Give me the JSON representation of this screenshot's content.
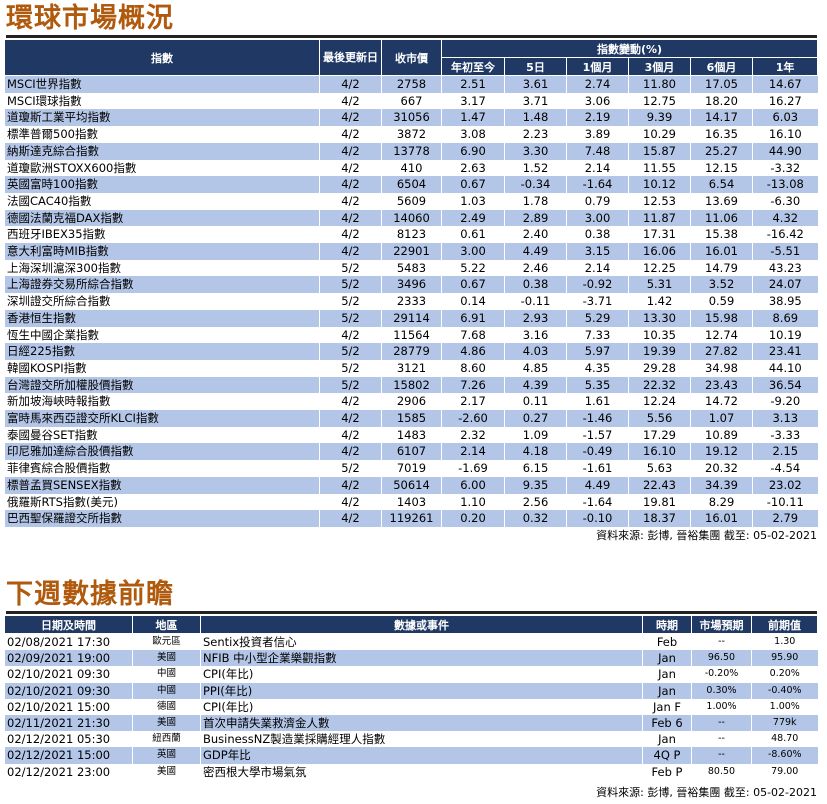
{
  "market": {
    "title": "環球市場概況",
    "headers": {
      "index": "指數",
      "last_update": "最後更新日",
      "close": "收市價",
      "change_group": "指數變動(%)",
      "ytd": "年初至今",
      "d5": "5日",
      "m1": "1個月",
      "m3": "3個月",
      "m6": "6個月",
      "y1": "1年"
    },
    "rows": [
      {
        "name": "MSCI世界指數",
        "date": "4/2",
        "close": "2758",
        "ytd": "2.51",
        "d5": "3.61",
        "m1": "2.74",
        "m3": "11.80",
        "m6": "17.05",
        "y1": "14.67"
      },
      {
        "name": "MSCI環球指數",
        "date": "4/2",
        "close": "667",
        "ytd": "3.17",
        "d5": "3.71",
        "m1": "3.06",
        "m3": "12.75",
        "m6": "18.20",
        "y1": "16.27"
      },
      {
        "name": "道瓊斯工業平均指數",
        "date": "4/2",
        "close": "31056",
        "ytd": "1.47",
        "d5": "1.48",
        "m1": "2.19",
        "m3": "9.39",
        "m6": "14.17",
        "y1": "6.03"
      },
      {
        "name": "標準普爾500指數",
        "date": "4/2",
        "close": "3872",
        "ytd": "3.08",
        "d5": "2.23",
        "m1": "3.89",
        "m3": "10.29",
        "m6": "16.35",
        "y1": "16.10"
      },
      {
        "name": "納斯達克綜合指數",
        "date": "4/2",
        "close": "13778",
        "ytd": "6.90",
        "d5": "3.30",
        "m1": "7.48",
        "m3": "15.87",
        "m6": "25.27",
        "y1": "44.90"
      },
      {
        "name": "道瓊歐洲STOXX600指數",
        "date": "4/2",
        "close": "410",
        "ytd": "2.63",
        "d5": "1.52",
        "m1": "2.14",
        "m3": "11.55",
        "m6": "12.15",
        "y1": "-3.32"
      },
      {
        "name": "英國富時100指數",
        "date": "4/2",
        "close": "6504",
        "ytd": "0.67",
        "d5": "-0.34",
        "m1": "-1.64",
        "m3": "10.12",
        "m6": "6.54",
        "y1": "-13.08"
      },
      {
        "name": "法國CAC40指數",
        "date": "4/2",
        "close": "5609",
        "ytd": "1.03",
        "d5": "1.78",
        "m1": "0.79",
        "m3": "12.53",
        "m6": "13.69",
        "y1": "-6.30"
      },
      {
        "name": "德國法蘭克福DAX指數",
        "date": "4/2",
        "close": "14060",
        "ytd": "2.49",
        "d5": "2.89",
        "m1": "3.00",
        "m3": "11.87",
        "m6": "11.06",
        "y1": "4.32"
      },
      {
        "name": "西班牙IBEX35指數",
        "date": "4/2",
        "close": "8123",
        "ytd": "0.61",
        "d5": "2.40",
        "m1": "0.38",
        "m3": "17.31",
        "m6": "15.38",
        "y1": "-16.42"
      },
      {
        "name": "意大利富時MIB指數",
        "date": "4/2",
        "close": "22901",
        "ytd": "3.00",
        "d5": "4.49",
        "m1": "3.15",
        "m3": "16.06",
        "m6": "16.01",
        "y1": "-5.51"
      },
      {
        "name": "上海深圳滬深300指數",
        "date": "5/2",
        "close": "5483",
        "ytd": "5.22",
        "d5": "2.46",
        "m1": "2.14",
        "m3": "12.25",
        "m6": "14.79",
        "y1": "43.23"
      },
      {
        "name": "上海證券交易所綜合指數",
        "date": "5/2",
        "close": "3496",
        "ytd": "0.67",
        "d5": "0.38",
        "m1": "-0.92",
        "m3": "5.31",
        "m6": "3.52",
        "y1": "24.07"
      },
      {
        "name": "深圳證交所綜合指數",
        "date": "5/2",
        "close": "2333",
        "ytd": "0.14",
        "d5": "-0.11",
        "m1": "-3.71",
        "m3": "1.42",
        "m6": "0.59",
        "y1": "38.95"
      },
      {
        "name": "香港恒生指數",
        "date": "5/2",
        "close": "29114",
        "ytd": "6.91",
        "d5": "2.93",
        "m1": "5.29",
        "m3": "13.30",
        "m6": "15.98",
        "y1": "8.69"
      },
      {
        "name": "恆生中國企業指數",
        "date": "4/2",
        "close": "11564",
        "ytd": "7.68",
        "d5": "3.16",
        "m1": "7.33",
        "m3": "10.35",
        "m6": "12.74",
        "y1": "10.19"
      },
      {
        "name": "日經225指數",
        "date": "5/2",
        "close": "28779",
        "ytd": "4.86",
        "d5": "4.03",
        "m1": "5.97",
        "m3": "19.39",
        "m6": "27.82",
        "y1": "23.41"
      },
      {
        "name": "韓國KOSPI指數",
        "date": "5/2",
        "close": "3121",
        "ytd": "8.60",
        "d5": "4.85",
        "m1": "4.35",
        "m3": "29.28",
        "m6": "34.98",
        "y1": "44.10"
      },
      {
        "name": "台灣證交所加權股價指數",
        "date": "5/2",
        "close": "15802",
        "ytd": "7.26",
        "d5": "4.39",
        "m1": "5.35",
        "m3": "22.32",
        "m6": "23.43",
        "y1": "36.54"
      },
      {
        "name": "新加坡海峽時報指數",
        "date": "4/2",
        "close": "2906",
        "ytd": "2.17",
        "d5": "0.11",
        "m1": "1.61",
        "m3": "12.24",
        "m6": "14.72",
        "y1": "-9.20"
      },
      {
        "name": "富時馬來西亞證交所KLCI指數",
        "date": "4/2",
        "close": "1585",
        "ytd": "-2.60",
        "d5": "0.27",
        "m1": "-1.46",
        "m3": "5.56",
        "m6": "1.07",
        "y1": "3.13"
      },
      {
        "name": "泰國曼谷SET指數",
        "date": "4/2",
        "close": "1483",
        "ytd": "2.32",
        "d5": "1.09",
        "m1": "-1.57",
        "m3": "17.29",
        "m6": "10.89",
        "y1": "-3.33"
      },
      {
        "name": "印尼雅加達綜合股價指數",
        "date": "4/2",
        "close": "6107",
        "ytd": "2.14",
        "d5": "4.18",
        "m1": "-0.49",
        "m3": "16.10",
        "m6": "19.12",
        "y1": "2.15"
      },
      {
        "name": "菲律賓綜合股價指數",
        "date": "5/2",
        "close": "7019",
        "ytd": "-1.69",
        "d5": "6.15",
        "m1": "-1.61",
        "m3": "5.63",
        "m6": "20.32",
        "y1": "-4.54"
      },
      {
        "name": "標普孟買SENSEX指數",
        "date": "4/2",
        "close": "50614",
        "ytd": "6.00",
        "d5": "9.35",
        "m1": "4.49",
        "m3": "22.43",
        "m6": "34.39",
        "y1": "23.02"
      },
      {
        "name": "俄羅斯RTS指數(美元)",
        "date": "4/2",
        "close": "1403",
        "ytd": "1.10",
        "d5": "2.56",
        "m1": "-1.64",
        "m3": "19.81",
        "m6": "8.29",
        "y1": "-10.11"
      },
      {
        "name": "巴西聖保羅證交所指數",
        "date": "4/2",
        "close": "119261",
        "ytd": "0.20",
        "d5": "0.32",
        "m1": "-0.10",
        "m3": "18.37",
        "m6": "16.01",
        "y1": "2.79"
      }
    ],
    "source": "資料來源: 彭博, 晉裕集團 截至:  05-02-2021"
  },
  "events": {
    "title": "下週數據前瞻",
    "headers": {
      "datetime": "日期及時間",
      "region": "地區",
      "event": "數據或事件",
      "period": "時期",
      "forecast": "市場預期",
      "previous": "前期值"
    },
    "rows": [
      {
        "datetime": "02/08/2021 17:30",
        "region": "歐元區",
        "event": "Sentix投資者信心",
        "period": "Feb",
        "forecast": "--",
        "previous": "1.30"
      },
      {
        "datetime": "02/09/2021 19:00",
        "region": "美國",
        "event": "NFIB 中小型企業樂觀指數",
        "period": "Jan",
        "forecast": "96.50",
        "previous": "95.90"
      },
      {
        "datetime": "02/10/2021 09:30",
        "region": "中國",
        "event": "CPI(年比)",
        "period": "Jan",
        "forecast": "-0.20%",
        "previous": "0.20%"
      },
      {
        "datetime": "02/10/2021 09:30",
        "region": "中國",
        "event": "PPI(年比)",
        "period": "Jan",
        "forecast": "0.30%",
        "previous": "-0.40%"
      },
      {
        "datetime": "02/10/2021 15:00",
        "region": "德國",
        "event": "CPI(年比)",
        "period": "Jan F",
        "forecast": "1.00%",
        "previous": "1.00%"
      },
      {
        "datetime": "02/11/2021 21:30",
        "region": "美國",
        "event": "首次申請失業救濟金人數",
        "period": "Feb 6",
        "forecast": "--",
        "previous": "779k"
      },
      {
        "datetime": "02/12/2021 05:30",
        "region": "紐西蘭",
        "event": "BusinessNZ製造業採購經理人指數",
        "period": "Jan",
        "forecast": "--",
        "previous": "48.70"
      },
      {
        "datetime": "02/12/2021 15:00",
        "region": "英國",
        "event": "GDP年比",
        "period": "4Q P",
        "forecast": "--",
        "previous": "-8.60%"
      },
      {
        "datetime": "02/12/2021 23:00",
        "region": "美國",
        "event": "密西根大學市場氣氛",
        "period": "Feb P",
        "forecast": "80.50",
        "previous": "79.00"
      }
    ],
    "source": "資料來源: 彭博, 晉裕集團 截至:  05-02-2021"
  }
}
